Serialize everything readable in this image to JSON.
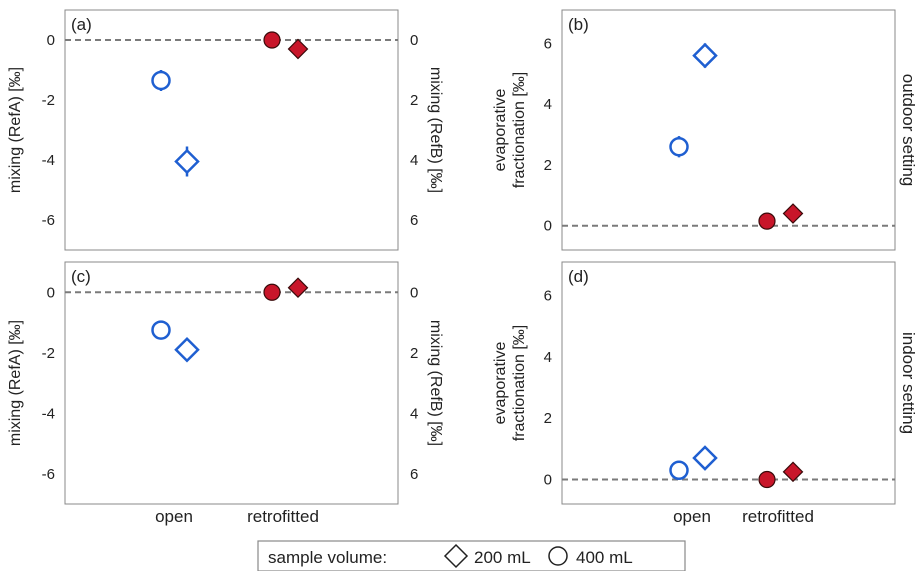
{
  "colors": {
    "open": "#1f5fd1",
    "retrofitted_fill": "#c8162a",
    "retrofitted_edge": "#3a0a0a",
    "zero_line": "#7a7a7a",
    "frame": "#888888"
  },
  "legend": {
    "title": "sample volume:",
    "items": [
      {
        "marker": "diamond",
        "label": "200 mL"
      },
      {
        "marker": "circle",
        "label": "400 mL"
      }
    ]
  },
  "categories": [
    "open",
    "retrofitted"
  ],
  "row_labels": {
    "top": "outdoor setting",
    "bottom": "indoor setting"
  },
  "chart_data": [
    {
      "panel": "(a)",
      "type": "scatter",
      "ylabel": "mixing (RefA) [‰]",
      "ylabel_right": "mixing (RefB) [‰]",
      "ylim": [
        -7,
        1
      ],
      "yticks": [
        "0",
        "-2",
        "-4",
        "-6"
      ],
      "yticks_right": [
        "0",
        "2",
        "4",
        "6"
      ],
      "categories": [
        "open",
        "retrofitted"
      ],
      "series": [
        {
          "name": "400 mL",
          "marker": "circle",
          "values": [
            -1.35,
            0.0
          ],
          "errors": [
            0.35,
            0.0
          ]
        },
        {
          "name": "200 mL",
          "marker": "diamond",
          "values": [
            -4.05,
            -0.3
          ],
          "errors": [
            0.5,
            0.0
          ]
        }
      ],
      "zero_line": true,
      "show_categories": false
    },
    {
      "panel": "(b)",
      "type": "scatter",
      "ylabel": [
        "evaporative",
        "fractionation [‰]"
      ],
      "ylim": [
        -0.8,
        7.1
      ],
      "yticks": [
        "0",
        "2",
        "4",
        "6"
      ],
      "categories": [
        "open",
        "retrofitted"
      ],
      "series": [
        {
          "name": "400 mL",
          "marker": "circle",
          "values": [
            2.6,
            0.15
          ],
          "errors": [
            0.35,
            0.0
          ]
        },
        {
          "name": "200 mL",
          "marker": "diamond",
          "values": [
            5.6,
            0.4
          ],
          "errors": [
            0.4,
            0.0
          ]
        }
      ],
      "zero_line": true,
      "show_categories": false,
      "side_label": "outdoor setting"
    },
    {
      "panel": "(c)",
      "type": "scatter",
      "ylabel": "mixing (RefA) [‰]",
      "ylabel_right": "mixing (RefB) [‰]",
      "ylim": [
        -7,
        1
      ],
      "yticks": [
        "0",
        "-2",
        "-4",
        "-6"
      ],
      "yticks_right": [
        "0",
        "2",
        "4",
        "6"
      ],
      "categories": [
        "open",
        "retrofitted"
      ],
      "series": [
        {
          "name": "400 mL",
          "marker": "circle",
          "values": [
            -1.25,
            0.0
          ],
          "errors": [
            0.0,
            0.0
          ]
        },
        {
          "name": "200 mL",
          "marker": "diamond",
          "values": [
            -1.9,
            0.15
          ],
          "errors": [
            0.0,
            0.0
          ]
        }
      ],
      "zero_line": true,
      "show_categories": true
    },
    {
      "panel": "(d)",
      "type": "scatter",
      "ylabel": [
        "evaporative",
        "fractionation [‰]"
      ],
      "ylim": [
        -0.8,
        7.1
      ],
      "yticks": [
        "0",
        "2",
        "4",
        "6"
      ],
      "categories": [
        "open",
        "retrofitted"
      ],
      "series": [
        {
          "name": "400 mL",
          "marker": "circle",
          "values": [
            0.3,
            0.0
          ],
          "errors": [
            0.0,
            0.0
          ]
        },
        {
          "name": "200 mL",
          "marker": "diamond",
          "values": [
            0.7,
            0.25
          ],
          "errors": [
            0.0,
            0.0
          ]
        }
      ],
      "zero_line": true,
      "show_categories": true,
      "side_label": "indoor setting"
    }
  ]
}
